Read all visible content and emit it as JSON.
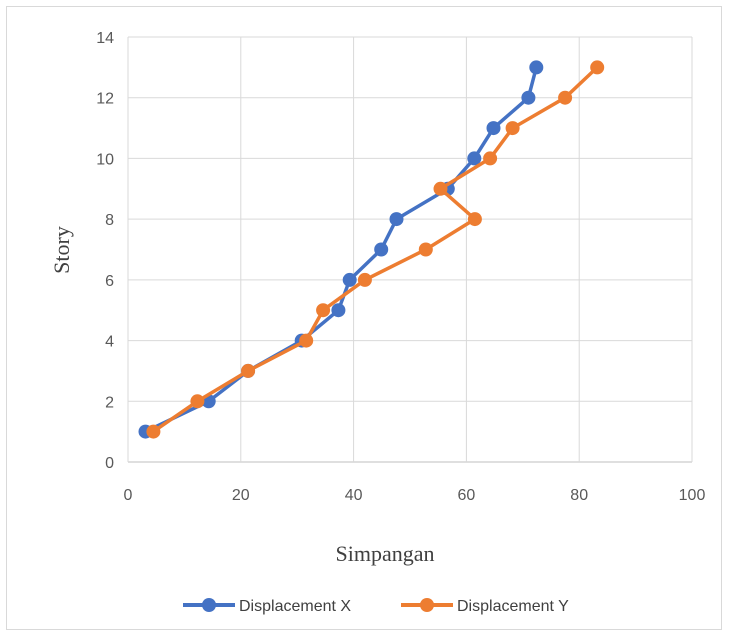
{
  "chart_data": {
    "type": "scatter",
    "title": "",
    "xlabel": "Simpangan",
    "ylabel": "Story",
    "xlim": [
      0,
      100
    ],
    "ylim": [
      0,
      14
    ],
    "xticks": [
      0,
      20,
      40,
      60,
      80,
      100
    ],
    "yticks": [
      0,
      2,
      4,
      6,
      8,
      10,
      12,
      14
    ],
    "grid": true,
    "legend": "bottom",
    "series": [
      {
        "name": "Displacement X",
        "color": "#4472C4",
        "x": [
          3.1,
          14.3,
          21.3,
          30.8,
          37.3,
          39.3,
          44.9,
          47.6,
          56.7,
          61.4,
          64.8,
          71.0,
          72.4
        ],
        "y": [
          1,
          2,
          3,
          4,
          5,
          6,
          7,
          8,
          9,
          10,
          11,
          12,
          13
        ]
      },
      {
        "name": "Displacement Y",
        "color": "#ED7D31",
        "x": [
          4.5,
          12.3,
          21.3,
          31.6,
          34.6,
          42.0,
          52.8,
          61.5,
          55.4,
          64.2,
          68.2,
          77.5,
          83.2
        ],
        "y": [
          1,
          2,
          3,
          4,
          5,
          6,
          7,
          8,
          9,
          10,
          11,
          12,
          13
        ]
      }
    ]
  }
}
